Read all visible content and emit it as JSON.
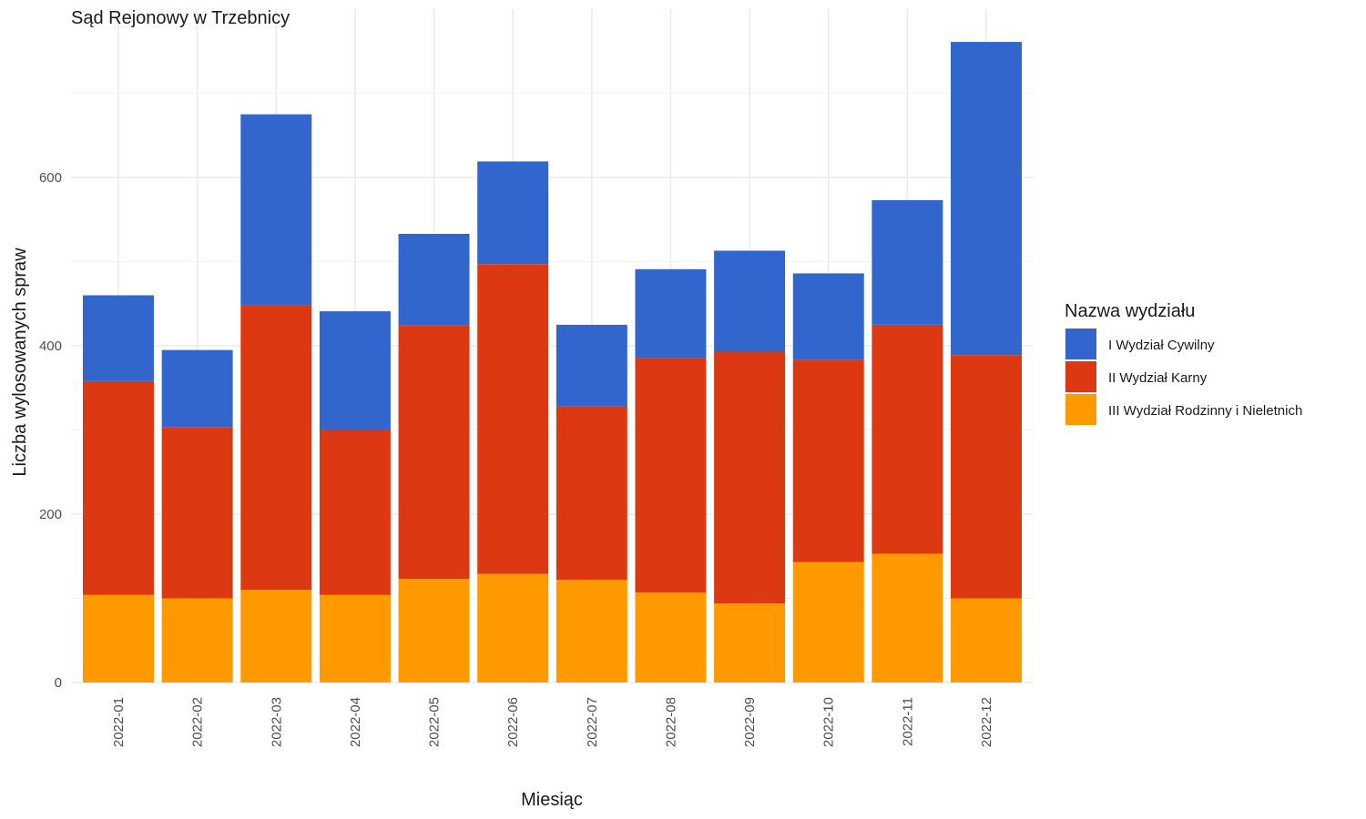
{
  "chart_data": {
    "type": "bar",
    "stacked": true,
    "title": "Sąd Rejonowy w Trzebnicy",
    "xlabel": "Miesiąc",
    "ylabel": "Liczba wylosowanych spraw",
    "ylim": [
      0,
      800
    ],
    "yticks": [
      0,
      200,
      400,
      600
    ],
    "grid": true,
    "legend": {
      "title": "Nazwa wydziału",
      "placement": "right"
    },
    "categories": [
      "2022-01",
      "2022-02",
      "2022-03",
      "2022-04",
      "2022-05",
      "2022-06",
      "2022-07",
      "2022-08",
      "2022-09",
      "2022-10",
      "2022-11",
      "2022-12"
    ],
    "series": [
      {
        "name": "III Wydział Rodzinny i Nieletnich",
        "color": "#FF9900",
        "values": [
          104,
          100,
          110,
          104,
          123,
          129,
          122,
          107,
          94,
          143,
          153,
          100
        ]
      },
      {
        "name": "II Wydział Karny",
        "color": "#DC3912",
        "values": [
          254,
          203,
          338,
          196,
          301,
          368,
          206,
          278,
          299,
          240,
          272,
          289
        ]
      },
      {
        "name": "I Wydział Cywilny",
        "color": "#3366CC",
        "values": [
          102,
          92,
          227,
          141,
          109,
          122,
          97,
          106,
          120,
          103,
          148,
          372
        ]
      }
    ],
    "legend_order": [
      "I Wydział Cywilny",
      "II Wydział Karny",
      "III Wydział Rodzinny i Nieletnich"
    ]
  }
}
